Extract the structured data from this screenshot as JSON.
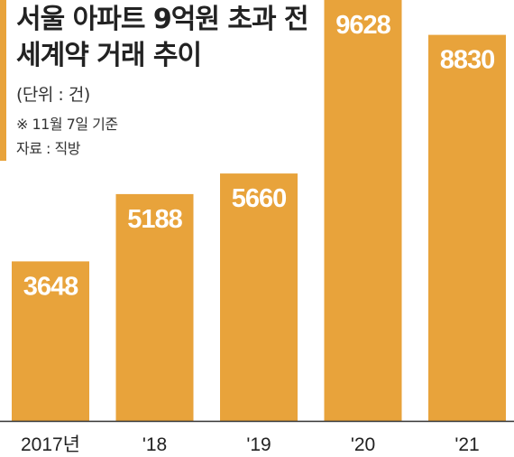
{
  "title": "서울 아파트 9억원 초과 전세계약 거래 추이",
  "unit_note": "(단위 : 건)",
  "basis_note": "※ 11월 7일 기준",
  "source_note": "자료 : 직방",
  "colors": {
    "bar": "#e8a33b",
    "accent": "#e8a33b",
    "text": "#222222",
    "axis": "#333333",
    "value_label": "#ffffff"
  },
  "chart_data": {
    "type": "bar",
    "title": "서울 아파트 9억원 초과 전세계약 거래 추이",
    "xlabel": "",
    "ylabel": "",
    "categories": [
      "2017년",
      "'18",
      "'19",
      "'20",
      "'21"
    ],
    "values": [
      3648,
      5188,
      5660,
      9628,
      8830
    ],
    "data_labels": [
      "3648",
      "5188",
      "5660",
      "9628",
      "8830"
    ],
    "ylim": [
      0,
      9628
    ],
    "grid": false,
    "legend": "none"
  }
}
